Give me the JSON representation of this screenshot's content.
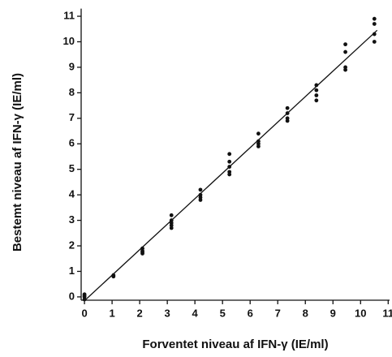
{
  "chart_data": {
    "type": "scatter",
    "x_label": "Forventet niveau af IFN-γ (IE/ml)",
    "y_label": "Bestemt niveau af IFN-γ    (IE/ml)",
    "xlim": [
      -0.12,
      11.05
    ],
    "ylim": [
      -0.13,
      11.3
    ],
    "xticks": [
      0,
      1,
      2,
      3,
      4,
      5,
      6,
      7,
      8,
      9,
      10,
      11
    ],
    "yticks": [
      0,
      1,
      2,
      3,
      4,
      5,
      6,
      7,
      8,
      9,
      10,
      11
    ],
    "color": "#111111",
    "points": {
      "x": [
        0,
        0,
        0,
        0,
        1.05,
        1.05,
        2.1,
        2.1,
        2.1,
        2.1,
        3.15,
        3.15,
        3.15,
        3.15,
        3.15,
        4.2,
        4.2,
        4.2,
        4.2,
        5.25,
        5.25,
        5.25,
        5.25,
        5.25,
        6.3,
        6.3,
        6.3,
        6.3,
        7.35,
        7.35,
        7.35,
        7.35,
        8.4,
        8.4,
        8.4,
        8.4,
        9.45,
        9.45,
        9.45,
        9.45,
        10.5,
        10.5,
        10.5,
        10.5
      ],
      "y": [
        0.1,
        0,
        -0.1,
        0.05,
        0.85,
        0.8,
        1.9,
        1.8,
        1.75,
        1.7,
        3.2,
        3.0,
        2.9,
        2.8,
        2.7,
        4.2,
        4.0,
        3.9,
        3.8,
        5.6,
        5.3,
        5.1,
        4.9,
        4.8,
        6.4,
        6.1,
        6.0,
        5.9,
        7.4,
        7.2,
        7.0,
        6.9,
        8.3,
        8.1,
        7.9,
        7.7,
        9.9,
        9.6,
        9.0,
        8.9,
        10.9,
        10.7,
        10.3,
        10.0
      ]
    },
    "fit": {
      "x": [
        0,
        10.6
      ],
      "y": [
        -0.15,
        10.45
      ]
    }
  }
}
